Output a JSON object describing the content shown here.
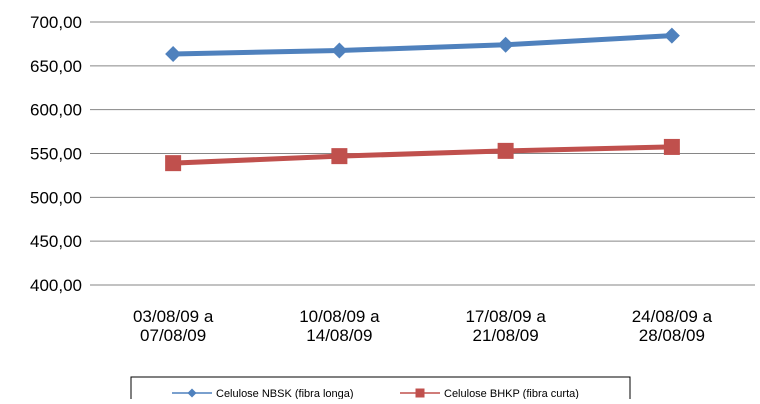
{
  "chart_data": {
    "type": "line",
    "categories": [
      [
        "03/08/09 a",
        "07/08/09"
      ],
      [
        "10/08/09 a",
        "14/08/09"
      ],
      [
        "17/08/09 a",
        "21/08/09"
      ],
      [
        "24/08/09 a",
        "28/08/09"
      ]
    ],
    "y_ticks": [
      "400,00",
      "450,00",
      "500,00",
      "550,00",
      "600,00",
      "650,00",
      "700,00"
    ],
    "ylim": [
      400,
      700
    ],
    "grid": true,
    "legend_position": "bottom",
    "series": [
      {
        "name": "Celulose NBSK (fibra longa)",
        "values": [
          663.5,
          667.5,
          674.0,
          684.5
        ],
        "color": "#4F81BD",
        "marker": "diamond"
      },
      {
        "name": "Celulose BHKP (fibra curta)",
        "values": [
          539.0,
          547.0,
          553.0,
          557.5
        ],
        "color": "#C0504D",
        "marker": "square"
      }
    ]
  }
}
